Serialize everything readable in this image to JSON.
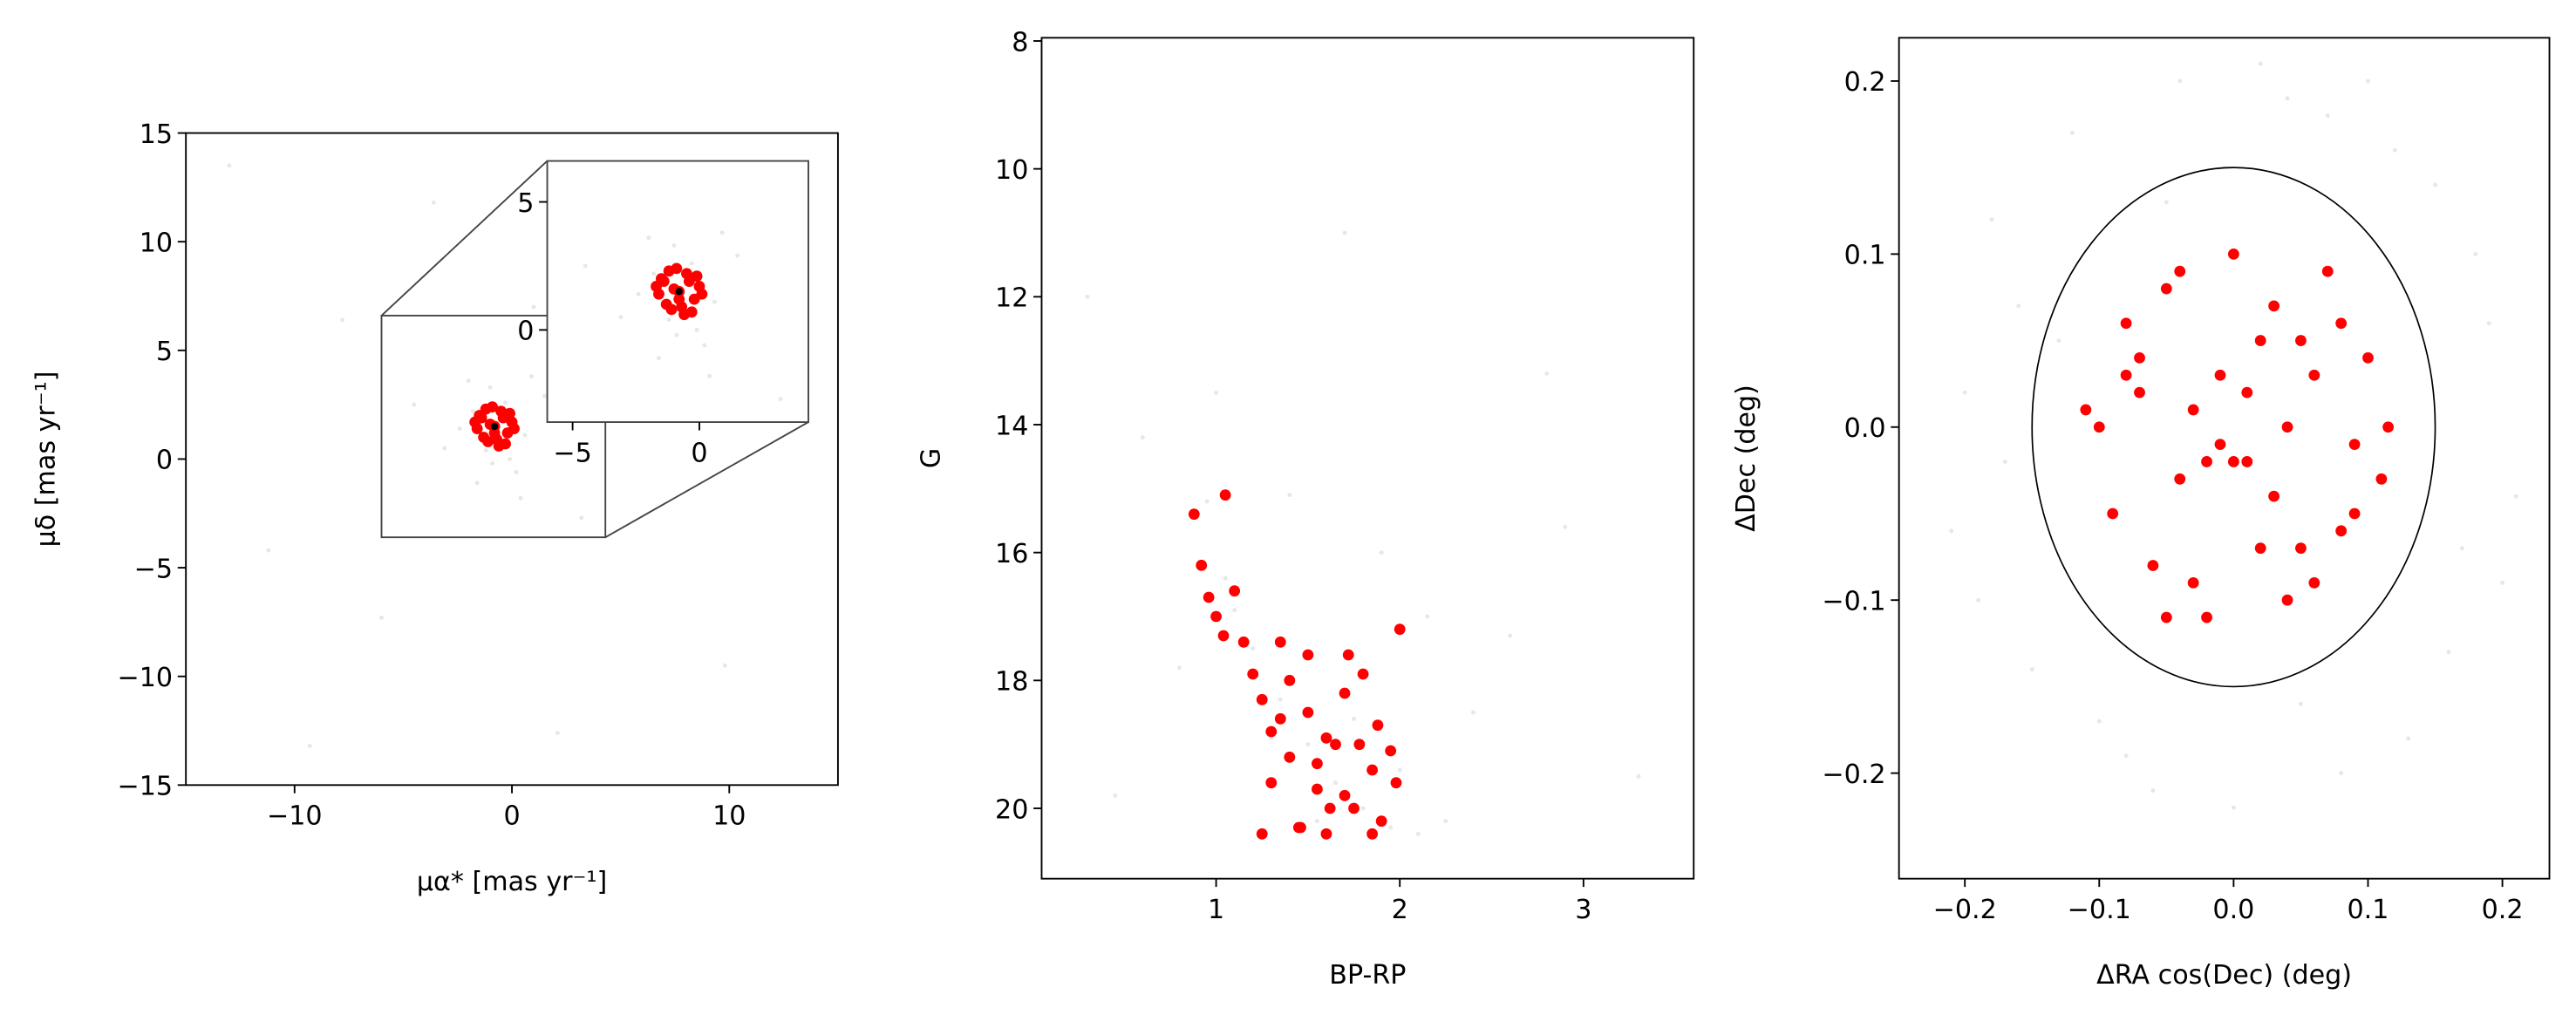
{
  "chart_data": [
    {
      "type": "scatter",
      "xlabel": "μα* [mas yr⁻¹]",
      "ylabel": "μδ [mas yr⁻¹]",
      "xlim": [
        -15,
        15
      ],
      "ylim": [
        -15,
        15
      ],
      "xticks": [
        {
          "value": -10,
          "label": "−10"
        },
        0,
        10
      ],
      "yticks": [
        {
          "value": -15,
          "label": "−15"
        },
        {
          "value": -10,
          "label": "−10"
        },
        {
          "value": -5,
          "label": "−5"
        },
        0,
        5,
        10,
        15
      ],
      "series": [
        {
          "color": "#bbbbbb",
          "x": [
            -0.5,
            -1.2,
            -0.3,
            -1.8,
            0.6,
            -2.4,
            0.2,
            -1.0,
            -0.9,
            1.5,
            -3.1,
            0.9,
            -1.6,
            -0.1,
            -2.0,
            0.4,
            -4.5,
            3.2,
            -7.8,
            5.6,
            -11.2,
            9.8,
            -3.6,
            2.1,
            -6.0,
            12.4,
            -13.0,
            7.5,
            -9.3,
            1.0
          ],
          "y": [
            1.8,
            0.4,
            2.6,
            2.2,
            1.1,
            1.4,
            -0.6,
            3.3,
            -0.2,
            2.9,
            0.5,
            3.8,
            -1.1,
            0.0,
            3.6,
            -1.8,
            2.5,
            -2.7,
            6.4,
            8.8,
            -4.2,
            -9.5,
            11.8,
            -12.6,
            -7.3,
            3.0,
            13.5,
            12.1,
            -13.2,
            7.0
          ]
        },
        {
          "color": "#ff0000",
          "x": [
            -0.8,
            -1.4,
            -0.2,
            -1.1,
            -0.5,
            -1.6,
            0.0,
            -0.9,
            -1.3,
            -0.3,
            -0.7,
            -1.5,
            0.1,
            -1.0,
            -0.4,
            -1.2,
            -0.6,
            -0.1,
            -1.7,
            -0.8
          ],
          "y": [
            1.5,
            1.9,
            1.2,
            0.8,
            2.2,
            1.4,
            1.7,
            2.4,
            1.0,
            0.7,
            0.9,
            2.0,
            1.4,
            1.6,
            1.9,
            2.3,
            0.6,
            2.1,
            1.7,
            1.2
          ]
        },
        {
          "color": "#000000",
          "x": [
            -0.8
          ],
          "y": [
            1.5
          ]
        }
      ],
      "inset": {
        "xlim": [
          -6,
          4.3
        ],
        "ylim": [
          -3.6,
          6.6
        ],
        "xticks": [
          {
            "value": -5,
            "label": "−5"
          },
          0
        ],
        "yticks": [
          0,
          5
        ]
      }
    },
    {
      "type": "scatter",
      "xlabel": "BP-RP",
      "ylabel": "G",
      "xlim": [
        0.05,
        3.6
      ],
      "ylim": [
        21.1,
        7.95
      ],
      "xticks": [
        1,
        2,
        3
      ],
      "yticks": [
        8,
        10,
        12,
        14,
        16,
        18,
        20
      ],
      "series": [
        {
          "color": "#bbbbbb",
          "x": [
            0.95,
            1.05,
            1.2,
            1.35,
            1.5,
            1.65,
            1.8,
            1.95,
            2.1,
            2.25,
            1.1,
            1.3,
            1.55,
            1.75,
            2.0,
            0.6,
            0.3,
            2.6,
            2.9,
            3.3,
            1.0,
            1.4,
            0.8,
            2.4,
            1.7,
            0.45,
            2.8,
            1.9,
            1.25,
            2.15
          ],
          "y": [
            15.2,
            16.4,
            17.5,
            18.3,
            19.0,
            19.6,
            20.0,
            20.3,
            20.4,
            20.2,
            16.9,
            18.9,
            20.2,
            18.6,
            19.4,
            14.2,
            12.0,
            17.3,
            15.6,
            19.5,
            13.5,
            15.1,
            17.8,
            18.5,
            11.0,
            19.8,
            13.2,
            16.0,
            20.4,
            17.0
          ]
        },
        {
          "color": "#ff0000",
          "x": [
            0.88,
            0.92,
            0.96,
            1.0,
            1.05,
            1.1,
            1.15,
            1.2,
            1.25,
            1.3,
            1.35,
            1.4,
            1.45,
            1.5,
            1.55,
            1.6,
            1.65,
            1.7,
            1.75,
            1.8,
            1.85,
            1.9,
            1.95,
            2.0,
            1.25,
            1.4,
            1.55,
            1.7,
            1.85,
            1.98,
            1.35,
            1.5,
            1.62,
            1.78,
            1.04,
            1.3,
            1.46,
            1.6,
            1.72,
            1.88
          ],
          "y": [
            15.4,
            16.2,
            16.7,
            17.0,
            15.1,
            16.6,
            17.4,
            17.9,
            18.3,
            18.8,
            17.4,
            19.2,
            20.3,
            18.5,
            19.7,
            20.4,
            19.0,
            18.2,
            20.0,
            17.9,
            19.4,
            20.2,
            19.1,
            17.2,
            20.4,
            18.0,
            19.3,
            19.8,
            20.4,
            19.6,
            18.6,
            17.6,
            20.0,
            19.0,
            17.3,
            19.6,
            20.3,
            18.9,
            17.6,
            18.7
          ]
        }
      ]
    },
    {
      "type": "scatter",
      "xlabel": "ΔRA cos(Dec) (deg)",
      "ylabel": "ΔDec (deg)",
      "xlim": [
        -0.249,
        0.235
      ],
      "ylim": [
        -0.261,
        0.225
      ],
      "xticks": [
        {
          "value": -0.2,
          "label": "−0.2"
        },
        {
          "value": -0.1,
          "label": "−0.1"
        },
        {
          "value": 0,
          "label": "0.0"
        },
        0.1,
        0.2
      ],
      "yticks": [
        {
          "value": -0.2,
          "label": "−0.2"
        },
        {
          "value": -0.1,
          "label": "−0.1"
        },
        {
          "value": 0,
          "label": "0.0"
        },
        0.1,
        0.2
      ],
      "series": [
        {
          "color": "#bbbbbb",
          "x": [
            -0.2,
            -0.18,
            -0.15,
            -0.12,
            -0.08,
            -0.04,
            0,
            0.04,
            0.08,
            0.12,
            0.16,
            0.19,
            0.21,
            -0.21,
            -0.16,
            -0.1,
            -0.05,
            0.02,
            0.07,
            0.13,
            0.18,
            -0.19,
            -0.13,
            -0.06,
            0.05,
            0.1,
            0.15,
            0.2,
            -0.17,
            0.17
          ],
          "y": [
            0.02,
            0.12,
            -0.14,
            0.17,
            -0.19,
            0.2,
            -0.22,
            0.19,
            -0.2,
            0.16,
            -0.13,
            0.06,
            -0.04,
            -0.06,
            0.07,
            -0.17,
            0.13,
            0.21,
            0.18,
            -0.18,
            0.1,
            -0.1,
            0.05,
            -0.21,
            -0.16,
            0.2,
            0.14,
            -0.09,
            -0.02,
            -0.07
          ]
        },
        {
          "color": "#ff0000",
          "x": [
            -0.1,
            -0.08,
            -0.06,
            -0.04,
            -0.02,
            0,
            0.02,
            0.04,
            0.06,
            0.08,
            0.1,
            0.11,
            -0.09,
            -0.07,
            -0.05,
            -0.03,
            -0.01,
            0.01,
            0.03,
            0.05,
            0.07,
            0.09,
            -0.11,
            0.115,
            -0.02,
            0.0,
            0.01,
            -0.01,
            0.03,
            -0.05,
            0.06,
            -0.07,
            0.08,
            -0.04,
            0.04,
            -0.08,
            0.02,
            0.09,
            -0.03,
            0.05
          ],
          "y": [
            0.0,
            0.06,
            -0.08,
            0.09,
            -0.02,
            0.1,
            0.05,
            -0.1,
            0.03,
            -0.06,
            0.04,
            -0.03,
            -0.05,
            0.02,
            0.08,
            -0.09,
            -0.01,
            -0.02,
            0.07,
            -0.07,
            0.09,
            -0.05,
            0.01,
            0.0,
            -0.11,
            -0.02,
            0.02,
            0.03,
            -0.04,
            -0.11,
            -0.09,
            0.04,
            0.06,
            -0.03,
            0.0,
            0.03,
            -0.07,
            -0.01,
            0.01,
            0.05
          ]
        }
      ],
      "ellipse": {
        "cx": 0,
        "cy": 0,
        "rx": 0.15,
        "ry": 0.15
      }
    }
  ]
}
